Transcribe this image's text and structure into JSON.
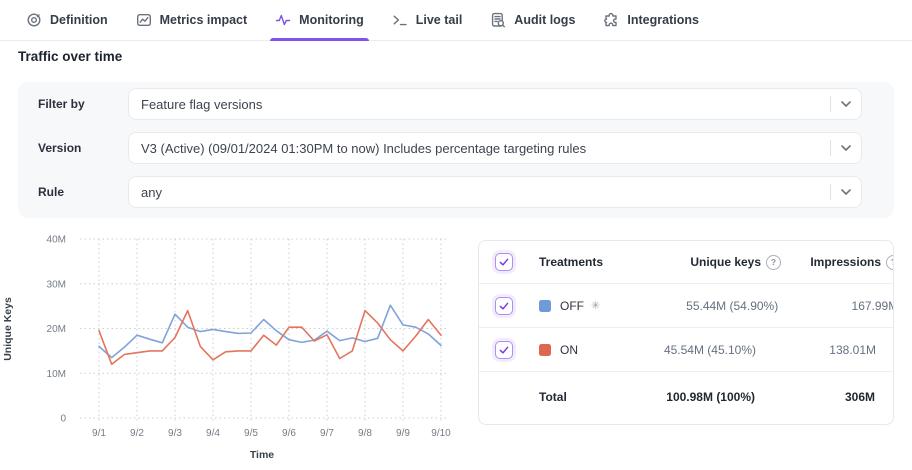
{
  "tabs": [
    {
      "label": "Definition",
      "icon": "target-icon",
      "active": false
    },
    {
      "label": "Metrics impact",
      "icon": "chart-line-icon",
      "active": false
    },
    {
      "label": "Monitoring",
      "icon": "pulse-icon",
      "active": true
    },
    {
      "label": "Live tail",
      "icon": "terminal-icon",
      "active": false
    },
    {
      "label": "Audit logs",
      "icon": "document-search-icon",
      "active": false
    },
    {
      "label": "Integrations",
      "icon": "puzzle-icon",
      "active": false
    }
  ],
  "section_title": "Traffic over time",
  "filters": [
    {
      "label": "Filter by",
      "value": "Feature flag versions"
    },
    {
      "label": "Version",
      "value": "V3 (Active) (09/01/2024 01:30PM to now) Includes percentage targeting rules"
    },
    {
      "label": "Rule",
      "value": "any"
    }
  ],
  "chart_data": {
    "type": "line",
    "title": "Traffic over time",
    "xlabel": "Time",
    "ylabel": "Unique Keys",
    "x_tick_labels": [
      "9/1",
      "9/2",
      "9/3",
      "9/4",
      "9/5",
      "9/6",
      "9/7",
      "9/8",
      "9/9",
      "9/10"
    ],
    "y_tick_labels": [
      "0",
      "10M",
      "20M",
      "30M",
      "40M"
    ],
    "ylim_millions": [
      0,
      40
    ],
    "points_per_day": 3,
    "grid": "dotted",
    "legend_position": "none",
    "series": [
      {
        "name": "OFF",
        "color": "#7fa3da",
        "values_millions": [
          16.0,
          13.5,
          15.8,
          18.5,
          17.6,
          16.8,
          23.2,
          20.3,
          19.3,
          19.8,
          19.3,
          18.9,
          19.0,
          22.0,
          19.5,
          17.5,
          16.9,
          17.4,
          19.4,
          17.3,
          17.9,
          17.1,
          17.8,
          25.2,
          20.8,
          20.3,
          18.8,
          16.2
        ]
      },
      {
        "name": "ON",
        "color": "#e4755c",
        "values_millions": [
          19.5,
          12.0,
          14.2,
          14.6,
          15.0,
          15.0,
          18.0,
          24.0,
          16.0,
          13.0,
          14.8,
          15.0,
          15.0,
          18.5,
          16.3,
          20.3,
          20.3,
          17.2,
          18.6,
          13.3,
          15.0,
          24.0,
          21.2,
          17.5,
          15.0,
          18.3,
          22.0,
          18.5
        ]
      }
    ]
  },
  "table": {
    "headers": {
      "treatments": "Treatments",
      "unique_keys": "Unique keys",
      "impressions": "Impressions"
    },
    "rows": [
      {
        "name": "OFF",
        "color": "#6d9bd8",
        "default_marker": "✳",
        "unique_keys": "55.44M (54.90%)",
        "impressions": "167.99M",
        "checked": true
      },
      {
        "name": "ON",
        "color": "#e0674f",
        "default_marker": "",
        "unique_keys": "45.54M (45.10%)",
        "impressions": "138.01M",
        "checked": true
      }
    ],
    "total": {
      "label": "Total",
      "unique_keys": "100.98M (100%)",
      "impressions": "306M"
    },
    "select_all_checked": true
  },
  "icons": {
    "tab_icons": [
      "target-icon",
      "chart-line-icon",
      "pulse-icon",
      "terminal-icon",
      "document-search-icon",
      "puzzle-icon"
    ],
    "select_chevron": "chevron-down-icon",
    "column_help": "question-circle-icon",
    "off_default_marker": "snowflake-icon",
    "checkbox": "checkmark-icon"
  },
  "colors": {
    "accent_purple": "#8352e6",
    "off_line_blue": "#7fa3da",
    "on_line_red": "#e4755c",
    "off_swatch": "#6d9bd8",
    "on_swatch": "#e0674f",
    "grid_gray": "#cbced4",
    "card_bg": "#f7f8fa"
  }
}
